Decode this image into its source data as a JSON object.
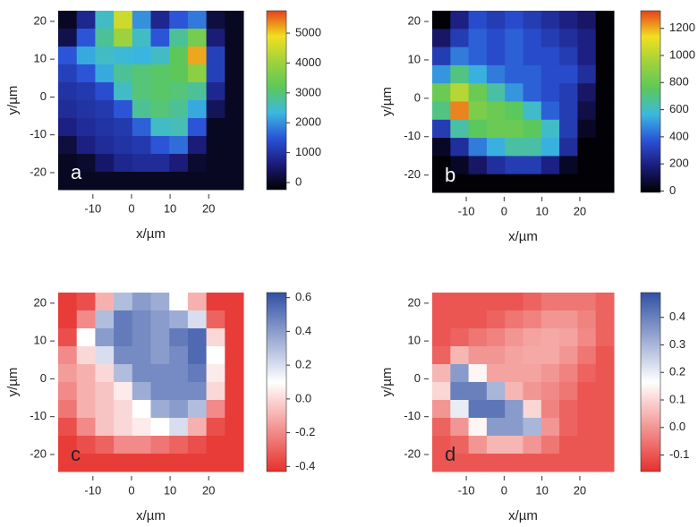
{
  "chart_data": [
    {
      "type": "heatmap",
      "label": "a",
      "xlabel": "x/µm",
      "ylabel": "y/µm",
      "xlim": [
        -19,
        29
      ],
      "ylim": [
        -24.5,
        22.8
      ],
      "xticks": [
        -10,
        0,
        10,
        20
      ],
      "yticks": [
        -20,
        -10,
        0,
        10,
        20
      ],
      "zlim": [
        -240,
        5750
      ],
      "zticks": [
        0,
        1000,
        2000,
        3000,
        4000,
        5000
      ],
      "colorscale": [
        "#000000",
        "#1b1b7a",
        "#2a52d6",
        "#3bb8e0",
        "#5cc85a",
        "#9fd23c",
        "#f0e020",
        "#e8401c"
      ],
      "x": [
        -16.6,
        -11.8,
        -7,
        -2.2,
        2.6,
        7.4,
        12.2,
        17,
        21.8,
        26.6
      ],
      "y": [
        20.44,
        15.71,
        10.98,
        6.25,
        1.52,
        -3.21,
        -7.94,
        -12.67,
        -17.4,
        -22.13
      ],
      "z": [
        [
          0,
          800,
          2500,
          4500,
          2000,
          800,
          1500,
          1800,
          200,
          0
        ],
        [
          300,
          1500,
          2800,
          4000,
          2500,
          1500,
          2800,
          3500,
          600,
          0
        ],
        [
          1500,
          2200,
          2500,
          2400,
          2300,
          2500,
          3200,
          5200,
          1200,
          0
        ],
        [
          1200,
          1500,
          2200,
          2800,
          3000,
          3100,
          3200,
          3800,
          1200,
          0
        ],
        [
          1000,
          1100,
          1400,
          2500,
          3000,
          3100,
          3000,
          2800,
          800,
          0
        ],
        [
          900,
          1000,
          1100,
          1500,
          2800,
          3000,
          2800,
          2200,
          400,
          0
        ],
        [
          700,
          900,
          1000,
          1100,
          1600,
          2500,
          2600,
          1500,
          0,
          0
        ],
        [
          200,
          700,
          900,
          1000,
          1100,
          1500,
          1700,
          600,
          0,
          0
        ],
        [
          0,
          100,
          500,
          800,
          900,
          900,
          600,
          100,
          0,
          0
        ],
        [
          0,
          0,
          0,
          0,
          0,
          0,
          0,
          0,
          0,
          0
        ]
      ]
    },
    {
      "type": "heatmap",
      "label": "b",
      "xlabel": "x/µm",
      "ylabel": "y/µm",
      "xlim": [
        -19,
        29
      ],
      "ylim": [
        -24.5,
        22.8
      ],
      "xticks": [
        -10,
        0,
        10,
        20
      ],
      "yticks": [
        -20,
        -10,
        0,
        10,
        20
      ],
      "zlim": [
        -10,
        1330
      ],
      "zticks": [
        0,
        200,
        400,
        600,
        800,
        1000,
        1200
      ],
      "colorscale": [
        "#000000",
        "#1b1b7a",
        "#2a52d6",
        "#3bb8e0",
        "#5cc85a",
        "#9fd23c",
        "#f0e020",
        "#e8401c"
      ],
      "x": [
        -16.6,
        -11.8,
        -7,
        -2.2,
        2.6,
        7.4,
        12.2,
        17,
        21.8,
        26.6
      ],
      "y": [
        20.44,
        15.71,
        10.98,
        6.25,
        1.52,
        -3.21,
        -7.94,
        -12.67,
        -17.4,
        -22.13
      ],
      "z": [
        [
          0,
          200,
          350,
          300,
          350,
          300,
          250,
          200,
          150,
          0
        ],
        [
          150,
          300,
          400,
          350,
          400,
          350,
          300,
          250,
          200,
          0
        ],
        [
          300,
          450,
          400,
          350,
          400,
          350,
          350,
          300,
          200,
          0
        ],
        [
          500,
          700,
          550,
          450,
          400,
          400,
          350,
          350,
          250,
          0
        ],
        [
          800,
          1000,
          800,
          650,
          500,
          400,
          350,
          300,
          150,
          0
        ],
        [
          700,
          1250,
          850,
          800,
          750,
          600,
          400,
          300,
          100,
          0
        ],
        [
          300,
          650,
          750,
          800,
          800,
          750,
          600,
          300,
          50,
          0
        ],
        [
          50,
          250,
          450,
          550,
          650,
          650,
          550,
          250,
          0,
          0
        ],
        [
          0,
          50,
          150,
          250,
          300,
          300,
          200,
          50,
          0,
          0
        ],
        [
          0,
          0,
          0,
          0,
          0,
          0,
          0,
          0,
          0,
          0
        ]
      ]
    },
    {
      "type": "heatmap",
      "label": "c",
      "xlabel": "x/µm",
      "ylabel": "y/µm",
      "xlim": [
        -19,
        29
      ],
      "ylim": [
        -24.5,
        22.8
      ],
      "xticks": [
        -10,
        0,
        10,
        20
      ],
      "yticks": [
        -20,
        -10,
        0,
        10,
        20
      ],
      "zlim": [
        -0.43,
        0.63
      ],
      "zticks": [
        -0.4,
        -0.2,
        {
          "value": 0,
          "label": "0.0"
        },
        0.2,
        0.4,
        0.6
      ],
      "colorscale": [
        "#e6302c",
        "#ffffff",
        "#3050a4"
      ],
      "x": [
        -16.6,
        -11.8,
        -7,
        -2.2,
        2.6,
        7.4,
        12.2,
        17,
        21.8,
        26.6
      ],
      "y": [
        20.44,
        15.71,
        10.98,
        6.25,
        1.52,
        -3.21,
        -7.94,
        -12.67,
        -17.4,
        -22.13
      ],
      "z": [
        [
          -0.4,
          -0.35,
          -0.1,
          0.3,
          0.4,
          0.35,
          0.1,
          -0.1,
          -0.4,
          -0.4
        ],
        [
          -0.4,
          -0.2,
          0.3,
          0.5,
          0.45,
          0.4,
          0.35,
          0.2,
          -0.3,
          -0.4
        ],
        [
          -0.35,
          0.1,
          0.4,
          0.5,
          0.45,
          0.4,
          0.5,
          0.55,
          0,
          -0.4
        ],
        [
          -0.2,
          0,
          0.2,
          0.45,
          0.45,
          0.4,
          0.45,
          0.55,
          0.1,
          -0.4
        ],
        [
          -0.15,
          -0.1,
          0,
          0.3,
          0.45,
          0.45,
          0.45,
          0.5,
          0.05,
          -0.4
        ],
        [
          -0.2,
          -0.1,
          -0.05,
          0.05,
          0.35,
          0.45,
          0.45,
          0.45,
          0,
          -0.4
        ],
        [
          -0.25,
          -0.1,
          -0.05,
          0,
          0.1,
          0.35,
          0.4,
          0.3,
          -0.2,
          -0.4
        ],
        [
          -0.35,
          -0.2,
          -0.05,
          0,
          0.05,
          0.1,
          0.2,
          -0.1,
          -0.35,
          -0.4
        ],
        [
          -0.4,
          -0.35,
          -0.3,
          -0.2,
          -0.2,
          -0.25,
          -0.3,
          -0.35,
          -0.4,
          -0.4
        ],
        [
          -0.4,
          -0.4,
          -0.4,
          -0.4,
          -0.4,
          -0.4,
          -0.4,
          -0.4,
          -0.4,
          -0.4
        ]
      ]
    },
    {
      "type": "heatmap",
      "label": "d",
      "xlabel": "x/µm",
      "ylabel": "y/µm",
      "xlim": [
        -19,
        29
      ],
      "ylim": [
        -24.5,
        22.8
      ],
      "xticks": [
        -10,
        0,
        10,
        20
      ],
      "yticks": [
        -20,
        -10,
        0,
        10,
        20
      ],
      "zlim": [
        -0.16,
        0.49
      ],
      "zticks": [
        -0.1,
        {
          "value": 0,
          "label": "0.0"
        },
        0.1,
        0.2,
        0.3,
        0.4
      ],
      "colorscale": [
        "#e6302c",
        "#ffffff",
        "#3050a4"
      ],
      "x": [
        -16.6,
        -11.8,
        -7,
        -2.2,
        2.6,
        7.4,
        12.2,
        17,
        21.8,
        26.6
      ],
      "y": [
        20.44,
        15.71,
        10.98,
        6.25,
        1.52,
        -3.21,
        -7.94,
        -12.67,
        -17.4,
        -22.13
      ],
      "z": [
        [
          -0.1,
          -0.1,
          -0.1,
          -0.1,
          -0.1,
          -0.08,
          -0.05,
          -0.05,
          -0.05,
          -0.08
        ],
        [
          -0.1,
          -0.1,
          -0.1,
          -0.08,
          -0.05,
          -0.03,
          0,
          0,
          -0.03,
          -0.08
        ],
        [
          -0.1,
          -0.08,
          -0.05,
          -0.03,
          0,
          0.02,
          0.03,
          0.02,
          -0.02,
          -0.08
        ],
        [
          -0.08,
          0.05,
          0,
          0,
          0.02,
          0.03,
          0.03,
          0,
          -0.05,
          -0.1
        ],
        [
          0.05,
          0.35,
          0.15,
          0.02,
          0.02,
          0.02,
          0,
          -0.03,
          -0.08,
          -0.1
        ],
        [
          0.1,
          0.4,
          0.4,
          0.3,
          0.05,
          0,
          -0.02,
          -0.05,
          -0.1,
          -0.1
        ],
        [
          0,
          0.2,
          0.42,
          0.42,
          0.35,
          0.1,
          -0.03,
          -0.08,
          -0.1,
          -0.1
        ],
        [
          -0.08,
          0,
          0.15,
          0.35,
          0.35,
          0.3,
          0,
          -0.08,
          -0.1,
          -0.1
        ],
        [
          -0.1,
          -0.08,
          0,
          0.05,
          0.05,
          0,
          -0.05,
          -0.1,
          -0.1,
          -0.1
        ],
        [
          -0.1,
          -0.1,
          -0.1,
          -0.1,
          -0.1,
          -0.1,
          -0.1,
          -0.1,
          -0.1,
          -0.1
        ]
      ]
    }
  ]
}
